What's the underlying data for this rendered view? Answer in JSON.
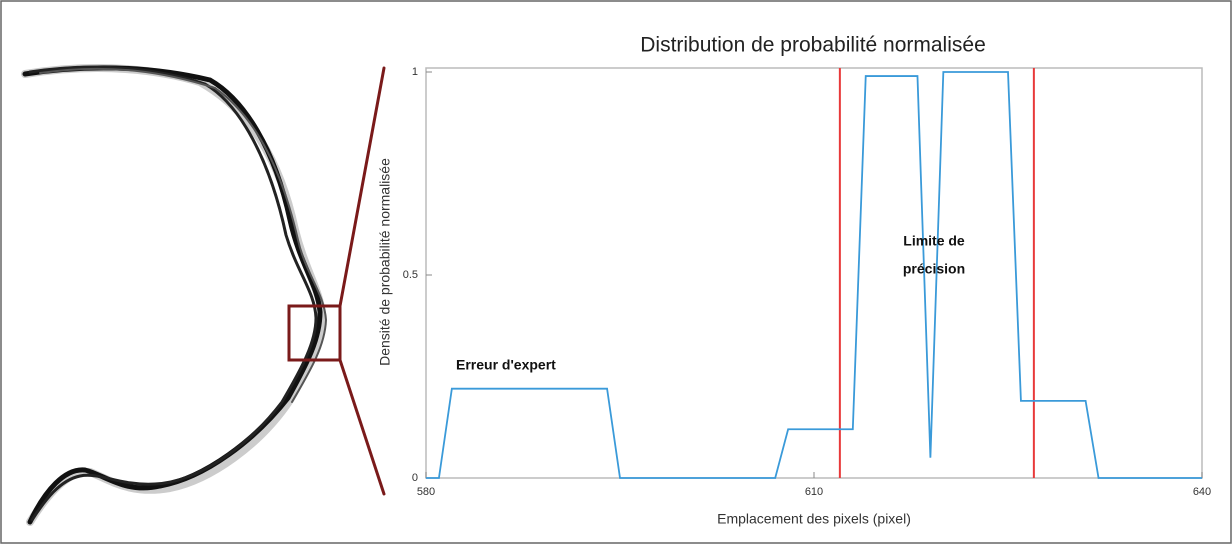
{
  "chart_data": {
    "type": "line",
    "title": "Distribution de probabilité normalisée",
    "x_label": "Emplacement  des pixels (pixel)",
    "y_label": "Densité de probabilité  normalisée",
    "x": [
      580,
      581,
      582,
      594,
      595,
      607,
      608,
      613,
      614,
      618,
      619,
      620,
      625,
      626,
      631,
      632,
      640
    ],
    "values": [
      0,
      0,
      0.22,
      0.22,
      0,
      0,
      0.12,
      0.12,
      0.99,
      0.99,
      0.05,
      1,
      1,
      0.19,
      0.19,
      0,
      0
    ],
    "color": "#3a9ad9",
    "xlim": [
      580,
      640
    ],
    "xticks": [
      580,
      610,
      640
    ],
    "ylim": [
      0,
      1
    ],
    "yticks": [
      0,
      0.5,
      1
    ],
    "reference_lines": [
      {
        "x": 612
      },
      {
        "x": 627
      }
    ],
    "reference_color": "#e8393a",
    "annotations": [
      {
        "lines": [
          "Erreur d'expert"
        ]
      },
      {
        "lines": [
          "Limite de",
          "précision"
        ]
      }
    ]
  }
}
